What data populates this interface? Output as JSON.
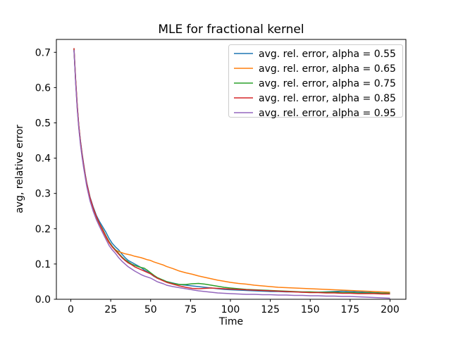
{
  "figure": {
    "title": "MLE for fractional kernel",
    "xlabel": "Time",
    "ylabel": "avg, relative error"
  },
  "chart_data": {
    "type": "line",
    "title": "MLE for fractional kernel",
    "xlabel": "Time",
    "ylabel": "avg, relative error",
    "xlim": [
      -9.05,
      209.95
    ],
    "ylim": [
      0,
      0.7365
    ],
    "x_ticks": [
      0,
      25,
      50,
      75,
      100,
      125,
      150,
      175,
      200
    ],
    "y_ticks": [
      0.0,
      0.1,
      0.2,
      0.3,
      0.4,
      0.5,
      0.6,
      0.7
    ],
    "grid": false,
    "legend_position": "upper right",
    "axis_color": "#000000",
    "legend_border_color": "#cccccc",
    "x": [
      2,
      3,
      4,
      5,
      6,
      7,
      8,
      9,
      10,
      12,
      14,
      16,
      18,
      20,
      22,
      24,
      26,
      28,
      30,
      32,
      34,
      36,
      38,
      40,
      42,
      44,
      46,
      48,
      50,
      52,
      54,
      56,
      58,
      60,
      64,
      68,
      72,
      76,
      80,
      84,
      88,
      92,
      96,
      100,
      105,
      110,
      115,
      120,
      125,
      130,
      135,
      140,
      145,
      150,
      155,
      160,
      165,
      170,
      175,
      180,
      185,
      190,
      195,
      200
    ],
    "series": [
      {
        "name": "avg. rel. error, alpha = 0.55",
        "color": "#1f77b4",
        "values": [
          0.705,
          0.62,
          0.545,
          0.492,
          0.45,
          0.415,
          0.385,
          0.355,
          0.33,
          0.29,
          0.262,
          0.238,
          0.22,
          0.205,
          0.19,
          0.172,
          0.158,
          0.148,
          0.14,
          0.128,
          0.118,
          0.11,
          0.105,
          0.1,
          0.095,
          0.09,
          0.083,
          0.078,
          0.072,
          0.065,
          0.06,
          0.057,
          0.054,
          0.05,
          0.046,
          0.042,
          0.04,
          0.038,
          0.036,
          0.034,
          0.032,
          0.03,
          0.028,
          0.027,
          0.026,
          0.025,
          0.024,
          0.023,
          0.022,
          0.022,
          0.021,
          0.021,
          0.02,
          0.02,
          0.02,
          0.021,
          0.022,
          0.023,
          0.022,
          0.021,
          0.02,
          0.019,
          0.018,
          0.018
        ]
      },
      {
        "name": "avg. rel. error, alpha = 0.65",
        "color": "#ff7f0e",
        "values": [
          0.708,
          0.618,
          0.542,
          0.488,
          0.443,
          0.408,
          0.378,
          0.35,
          0.324,
          0.283,
          0.254,
          0.23,
          0.21,
          0.193,
          0.175,
          0.16,
          0.148,
          0.14,
          0.135,
          0.132,
          0.129,
          0.127,
          0.125,
          0.122,
          0.12,
          0.118,
          0.115,
          0.112,
          0.11,
          0.106,
          0.103,
          0.1,
          0.097,
          0.093,
          0.087,
          0.08,
          0.075,
          0.071,
          0.066,
          0.062,
          0.058,
          0.054,
          0.051,
          0.048,
          0.045,
          0.043,
          0.04,
          0.038,
          0.036,
          0.034,
          0.033,
          0.032,
          0.031,
          0.03,
          0.029,
          0.028,
          0.027,
          0.026,
          0.025,
          0.024,
          0.023,
          0.022,
          0.021,
          0.02
        ]
      },
      {
        "name": "avg. rel. error, alpha = 0.75",
        "color": "#2ca02c",
        "values": [
          0.71,
          0.622,
          0.548,
          0.49,
          0.447,
          0.41,
          0.38,
          0.352,
          0.327,
          0.287,
          0.258,
          0.234,
          0.214,
          0.198,
          0.18,
          0.163,
          0.15,
          0.14,
          0.13,
          0.12,
          0.112,
          0.106,
          0.1,
          0.096,
          0.093,
          0.09,
          0.088,
          0.082,
          0.075,
          0.068,
          0.062,
          0.058,
          0.054,
          0.05,
          0.045,
          0.042,
          0.042,
          0.044,
          0.045,
          0.043,
          0.04,
          0.037,
          0.034,
          0.032,
          0.03,
          0.028,
          0.027,
          0.026,
          0.025,
          0.024,
          0.023,
          0.022,
          0.021,
          0.021,
          0.02,
          0.02,
          0.02,
          0.019,
          0.019,
          0.018,
          0.018,
          0.018,
          0.017,
          0.017
        ]
      },
      {
        "name": "avg. rel. error, alpha = 0.85",
        "color": "#d62728",
        "values": [
          0.712,
          0.625,
          0.55,
          0.493,
          0.448,
          0.412,
          0.382,
          0.353,
          0.328,
          0.288,
          0.259,
          0.235,
          0.214,
          0.196,
          0.178,
          0.161,
          0.148,
          0.138,
          0.128,
          0.118,
          0.11,
          0.103,
          0.098,
          0.092,
          0.088,
          0.084,
          0.08,
          0.076,
          0.072,
          0.066,
          0.06,
          0.056,
          0.052,
          0.048,
          0.043,
          0.038,
          0.034,
          0.031,
          0.03,
          0.031,
          0.032,
          0.031,
          0.03,
          0.029,
          0.028,
          0.027,
          0.026,
          0.025,
          0.024,
          0.023,
          0.022,
          0.021,
          0.02,
          0.019,
          0.019,
          0.018,
          0.018,
          0.017,
          0.017,
          0.016,
          0.016,
          0.016,
          0.015,
          0.015
        ]
      },
      {
        "name": "avg. rel. error, alpha = 0.95",
        "color": "#9467bd",
        "values": [
          0.707,
          0.615,
          0.54,
          0.485,
          0.44,
          0.404,
          0.374,
          0.346,
          0.32,
          0.279,
          0.25,
          0.226,
          0.206,
          0.188,
          0.17,
          0.152,
          0.14,
          0.13,
          0.118,
          0.108,
          0.1,
          0.092,
          0.086,
          0.08,
          0.075,
          0.07,
          0.066,
          0.063,
          0.06,
          0.055,
          0.05,
          0.047,
          0.044,
          0.04,
          0.036,
          0.033,
          0.03,
          0.027,
          0.024,
          0.022,
          0.02,
          0.018,
          0.017,
          0.016,
          0.015,
          0.014,
          0.014,
          0.013,
          0.013,
          0.012,
          0.012,
          0.011,
          0.011,
          0.01,
          0.01,
          0.009,
          0.009,
          0.008,
          0.008,
          0.007,
          0.006,
          0.005,
          0.004,
          0.003
        ]
      }
    ]
  }
}
